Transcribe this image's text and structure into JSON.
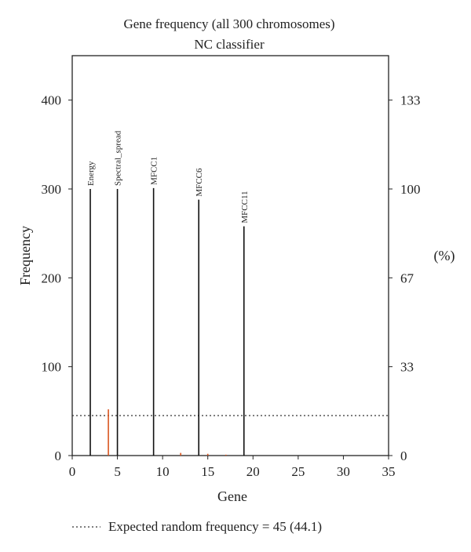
{
  "chart_data": {
    "type": "bar",
    "title": "Gene frequency (all 300 chromosomes)",
    "subtitle": "NC classifier",
    "xlabel": "Gene",
    "ylabel": "Frequency",
    "y2label": "(%)",
    "xlim": [
      0,
      35
    ],
    "ylim": [
      0,
      450
    ],
    "x_ticks": [
      0,
      5,
      10,
      15,
      20,
      25,
      30,
      35
    ],
    "y_ticks": [
      0,
      100,
      200,
      300,
      400
    ],
    "y2_ticks": [
      {
        "value": 0,
        "label": "0"
      },
      {
        "value": 100,
        "label": "33"
      },
      {
        "value": 200,
        "label": "67"
      },
      {
        "value": 300,
        "label": "100"
      },
      {
        "value": 400,
        "label": "133"
      }
    ],
    "grid": false,
    "series": [
      {
        "color": "#111111",
        "points": [
          {
            "x": 2,
            "y": 300,
            "label": "Energy"
          },
          {
            "x": 5,
            "y": 300,
            "label": "Spectral_spread"
          },
          {
            "x": 9,
            "y": 301,
            "label": "MFCC1"
          },
          {
            "x": 14,
            "y": 288,
            "label": "MFCC6"
          },
          {
            "x": 19,
            "y": 258,
            "label": "MFCC11"
          }
        ]
      },
      {
        "color": "#d9541e",
        "points": [
          {
            "x": 4,
            "y": 52
          },
          {
            "x": 12,
            "y": 3
          },
          {
            "x": 15,
            "y": 2
          },
          {
            "x": 17,
            "y": 1
          }
        ]
      }
    ],
    "reference_line": {
      "y": 45,
      "style": "dotted",
      "color": "#333333"
    },
    "legend": {
      "position": "bottom-left",
      "text": "Expected random frequency = 45 (44.1)"
    }
  }
}
